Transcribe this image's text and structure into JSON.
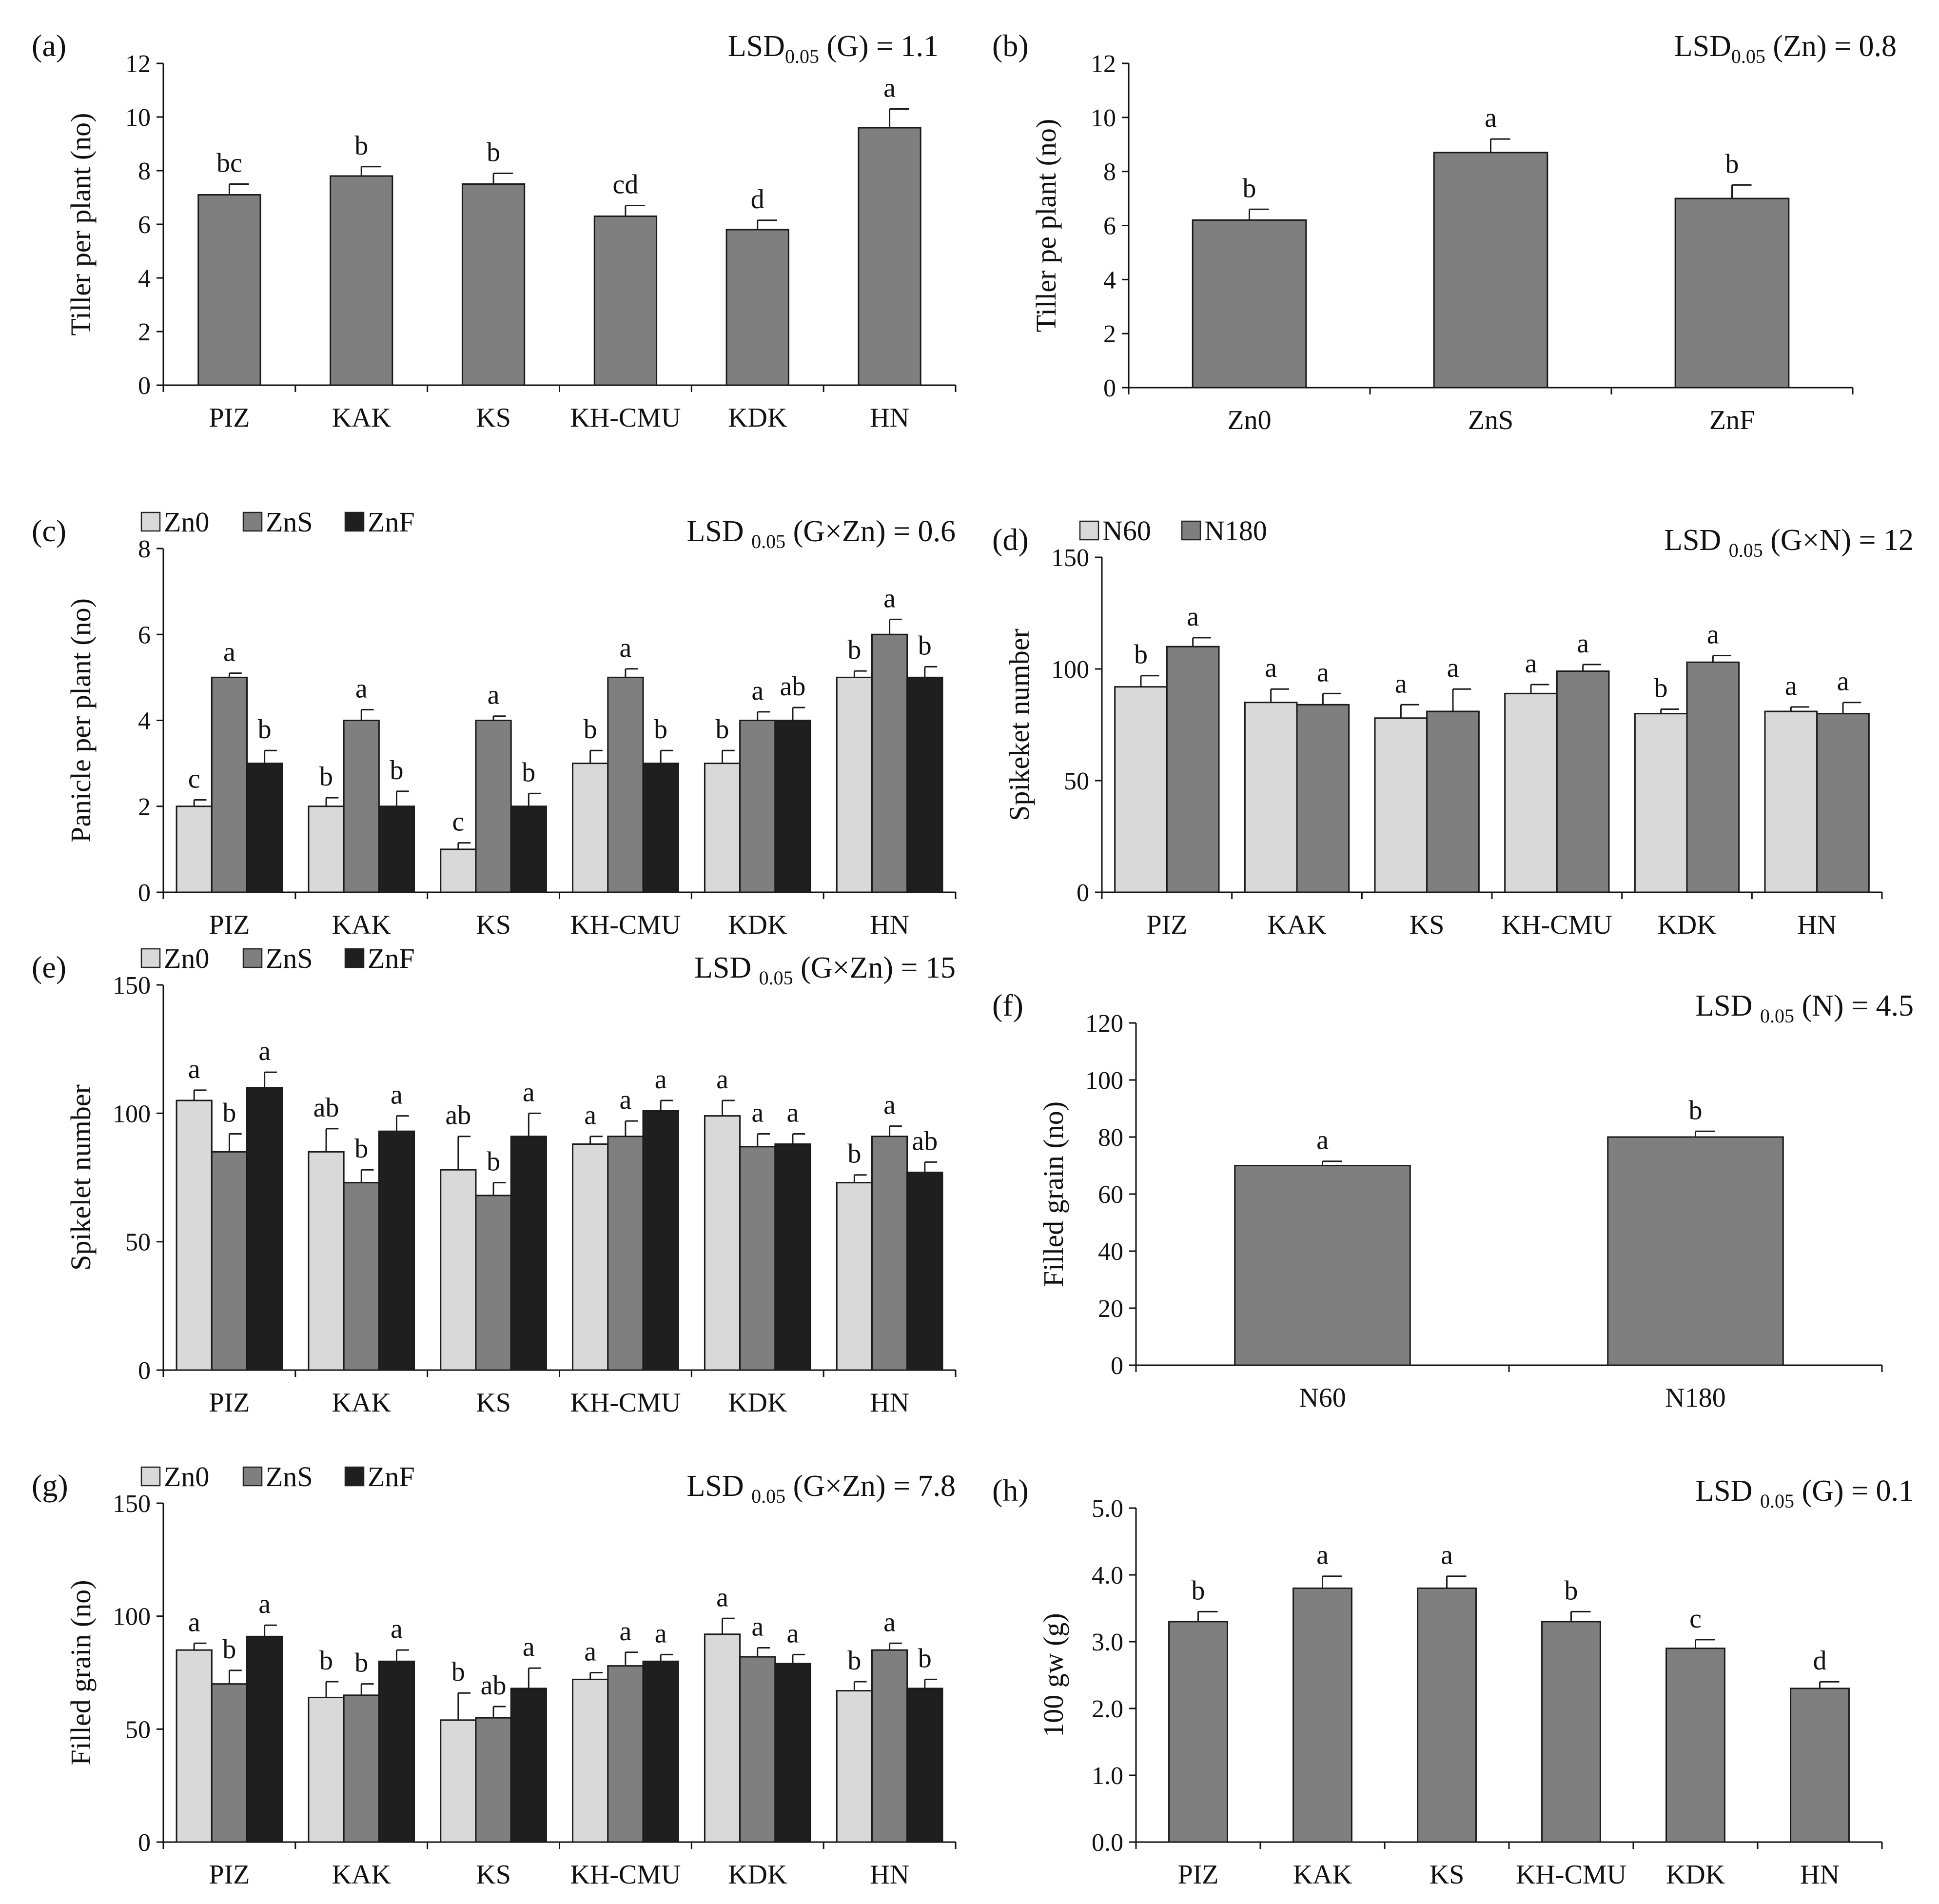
{
  "chart_data": [
    {
      "panel_label": "(a)",
      "type": "bar",
      "lsd": {
        "pre": "LSD",
        "sub": "0.05",
        "post": " (G) = 1.1"
      },
      "ylabel": "Tiller per plant (no)",
      "xlabel": "",
      "ylim": [
        0,
        12
      ],
      "yticks": [
        "0",
        "2",
        "4",
        "6",
        "8",
        "10",
        "12"
      ],
      "ytick_values": [
        0,
        2,
        4,
        6,
        8,
        10,
        12
      ],
      "categories": [
        "PIZ",
        "KAK",
        "KS",
        "KH-CMU",
        "KDK",
        "HN"
      ],
      "series": [
        {
          "color": "#7f7f7f",
          "values": [
            7.1,
            7.8,
            7.5,
            6.3,
            5.8,
            9.6
          ],
          "errors": [
            0.4,
            0.35,
            0.4,
            0.4,
            0.35,
            0.7
          ],
          "letters": [
            "bc",
            "b",
            "b",
            "cd",
            "d",
            "a"
          ]
        }
      ],
      "legend": []
    },
    {
      "panel_label": "(b)",
      "type": "bar",
      "lsd": {
        "pre": "LSD",
        "sub": "0.05",
        "post": " (Zn) = 0.8"
      },
      "ylabel": "Tiller pe plant (no)",
      "xlabel": "",
      "ylim": [
        0,
        12
      ],
      "yticks": [
        "0",
        "2",
        "4",
        "6",
        "8",
        "10",
        "12"
      ],
      "ytick_values": [
        0,
        2,
        4,
        6,
        8,
        10,
        12
      ],
      "categories": [
        "Zn0",
        "ZnS",
        "ZnF"
      ],
      "series": [
        {
          "color": "#7f7f7f",
          "values": [
            6.2,
            8.7,
            7.0
          ],
          "errors": [
            0.4,
            0.5,
            0.5
          ],
          "letters": [
            "b",
            "a",
            "b"
          ]
        }
      ],
      "legend": []
    },
    {
      "panel_label": "(c)",
      "type": "bar",
      "lsd": {
        "pre": "LSD ",
        "sub": "0.05",
        "post": " (G×Zn) = 0.6"
      },
      "ylabel": "Panicle per plant (no)",
      "xlabel": "",
      "ylim": [
        0,
        8
      ],
      "yticks": [
        "0",
        "2",
        "4",
        "6",
        "8"
      ],
      "ytick_values": [
        0,
        2,
        4,
        6,
        8
      ],
      "categories": [
        "PIZ",
        "KAK",
        "KS",
        "KH-CMU",
        "KDK",
        "HN"
      ],
      "series": [
        {
          "name": "Zn0",
          "color": "#d9d9d9",
          "values": [
            2,
            2,
            1,
            3,
            3,
            5
          ],
          "errors": [
            0.15,
            0.2,
            0.15,
            0.3,
            0.3,
            0.15
          ],
          "letters": [
            "c",
            "b",
            "c",
            "b",
            "b",
            "b"
          ]
        },
        {
          "name": "ZnS",
          "color": "#7f7f7f",
          "values": [
            5,
            4,
            4,
            5,
            4,
            6
          ],
          "errors": [
            0.1,
            0.25,
            0.1,
            0.2,
            0.2,
            0.35
          ],
          "letters": [
            "a",
            "a",
            "a",
            "a",
            "a",
            "a"
          ]
        },
        {
          "name": "ZnF",
          "color": "#1f1f1f",
          "values": [
            3,
            2,
            2,
            3,
            4,
            5
          ],
          "errors": [
            0.3,
            0.35,
            0.3,
            0.3,
            0.3,
            0.25
          ],
          "letters": [
            "b",
            "b",
            "b",
            "b",
            "ab",
            "b"
          ]
        }
      ],
      "legend": [
        "Zn0",
        "ZnS",
        "ZnF"
      ]
    },
    {
      "panel_label": "(d)",
      "type": "bar",
      "lsd": {
        "pre": "LSD ",
        "sub": "0.05",
        "post": " (G×N) = 12"
      },
      "ylabel": "Spikeket number",
      "xlabel": "",
      "ylim": [
        0,
        150
      ],
      "yticks": [
        "0",
        "50",
        "100",
        "150"
      ],
      "ytick_values": [
        0,
        50,
        100,
        150
      ],
      "categories": [
        "PIZ",
        "KAK",
        "KS",
        "KH-CMU",
        "KDK",
        "HN"
      ],
      "series": [
        {
          "name": "N60",
          "color": "#d9d9d9",
          "values": [
            92,
            85,
            78,
            89,
            80,
            81
          ],
          "errors": [
            5,
            6,
            6,
            4,
            2,
            2
          ],
          "letters": [
            "b",
            "a",
            "a",
            "a",
            "b",
            "a"
          ]
        },
        {
          "name": "N180",
          "color": "#7f7f7f",
          "values": [
            110,
            84,
            81,
            99,
            103,
            80
          ],
          "errors": [
            4,
            5,
            10,
            3,
            3,
            5
          ],
          "letters": [
            "a",
            "a",
            "a",
            "a",
            "a",
            "a"
          ]
        }
      ],
      "legend": [
        "N60",
        "N180"
      ]
    },
    {
      "panel_label": "(e)",
      "type": "bar",
      "lsd": {
        "pre": "LSD ",
        "sub": "0.05",
        "post": " (G×Zn) = 15"
      },
      "ylabel": "Spikelet number",
      "xlabel": "",
      "ylim": [
        0,
        150
      ],
      "yticks": [
        "0",
        "50",
        "100",
        "150"
      ],
      "ytick_values": [
        0,
        50,
        100,
        150
      ],
      "categories": [
        "PIZ",
        "KAK",
        "KS",
        "KH-CMU",
        "KDK",
        "HN"
      ],
      "series": [
        {
          "name": "Zn0",
          "color": "#d9d9d9",
          "values": [
            105,
            85,
            78,
            88,
            99,
            73
          ],
          "errors": [
            4,
            9,
            13,
            3,
            6,
            3
          ],
          "letters": [
            "a",
            "ab",
            "ab",
            "a",
            "a",
            "b"
          ]
        },
        {
          "name": "ZnS",
          "color": "#7f7f7f",
          "values": [
            85,
            73,
            68,
            91,
            87,
            91
          ],
          "errors": [
            7,
            5,
            5,
            6,
            5,
            4
          ],
          "letters": [
            "b",
            "b",
            "b",
            "a",
            "a",
            "a"
          ]
        },
        {
          "name": "ZnF",
          "color": "#1f1f1f",
          "values": [
            110,
            93,
            91,
            101,
            88,
            77
          ],
          "errors": [
            6,
            6,
            9,
            4,
            4,
            4
          ],
          "letters": [
            "a",
            "a",
            "a",
            "a",
            "a",
            "ab"
          ]
        }
      ],
      "legend": [
        "Zn0",
        "ZnS",
        "ZnF"
      ]
    },
    {
      "panel_label": "(f)",
      "type": "bar",
      "lsd": {
        "pre": "LSD ",
        "sub": "0.05",
        "post": " (N) = 4.5"
      },
      "ylabel": "Filled grain (no)",
      "xlabel": "",
      "ylim": [
        0,
        120
      ],
      "yticks": [
        "0",
        "20",
        "40",
        "60",
        "80",
        "100",
        "120"
      ],
      "ytick_values": [
        0,
        20,
        40,
        60,
        80,
        100,
        120
      ],
      "categories": [
        "N60",
        "N180"
      ],
      "series": [
        {
          "color": "#7f7f7f",
          "values": [
            70,
            80
          ],
          "errors": [
            1.5,
            2
          ],
          "letters": [
            "a",
            "b"
          ]
        }
      ],
      "legend": []
    },
    {
      "panel_label": "(g)",
      "type": "bar",
      "lsd": {
        "pre": "LSD ",
        "sub": "0.05",
        "post": " (G×Zn) = 7.8"
      },
      "ylabel": "Filled grain (no)",
      "xlabel": "",
      "ylim": [
        0,
        150
      ],
      "yticks": [
        "0",
        "50",
        "100",
        "150"
      ],
      "ytick_values": [
        0,
        50,
        100,
        150
      ],
      "categories": [
        "PIZ",
        "KAK",
        "KS",
        "KH-CMU",
        "KDK",
        "HN"
      ],
      "series": [
        {
          "name": "Zn0",
          "color": "#d9d9d9",
          "values": [
            85,
            64,
            54,
            72,
            92,
            67
          ],
          "errors": [
            3,
            7,
            12,
            3,
            7,
            4
          ],
          "letters": [
            "a",
            "b",
            "b",
            "a",
            "a",
            "b"
          ]
        },
        {
          "name": "ZnS",
          "color": "#7f7f7f",
          "values": [
            70,
            65,
            55,
            78,
            82,
            85
          ],
          "errors": [
            6,
            5,
            5,
            6,
            4,
            3
          ],
          "letters": [
            "b",
            "b",
            "ab",
            "a",
            "a",
            "a"
          ]
        },
        {
          "name": "ZnF",
          "color": "#1f1f1f",
          "values": [
            91,
            80,
            68,
            80,
            79,
            68
          ],
          "errors": [
            5,
            5,
            9,
            3,
            4,
            4
          ],
          "letters": [
            "a",
            "a",
            "a",
            "a",
            "a",
            "b"
          ]
        }
      ],
      "legend": [
        "Zn0",
        "ZnS",
        "ZnF"
      ]
    },
    {
      "panel_label": "(h)",
      "type": "bar",
      "lsd": {
        "pre": "LSD ",
        "sub": "0.05",
        "post": " (G) = 0.1"
      },
      "ylabel": "100 gw (g)",
      "xlabel": "",
      "ylim": [
        0,
        5
      ],
      "yticks": [
        "0.0",
        "1.0",
        "2.0",
        "3.0",
        "4.0",
        "5.0"
      ],
      "ytick_values": [
        0,
        1,
        2,
        3,
        4,
        5
      ],
      "categories": [
        "PIZ",
        "KAK",
        "KS",
        "KH-CMU",
        "KDK",
        "HN"
      ],
      "series": [
        {
          "color": "#7f7f7f",
          "values": [
            3.3,
            3.8,
            3.8,
            3.3,
            2.9,
            2.3
          ],
          "errors": [
            0.15,
            0.18,
            0.18,
            0.15,
            0.13,
            0.1
          ],
          "letters": [
            "b",
            "a",
            "a",
            "b",
            "c",
            "d"
          ]
        }
      ],
      "legend": []
    }
  ]
}
